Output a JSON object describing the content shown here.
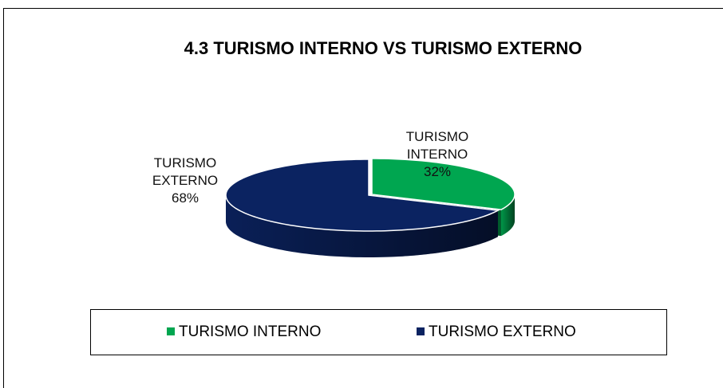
{
  "chart_data": {
    "type": "pie",
    "title": "4.3 TURISMO INTERNO VS TURISMO EXTERNO",
    "categories": [
      "TURISMO INTERNO",
      "TURISMO EXTERNO"
    ],
    "values": [
      32,
      68
    ],
    "value_labels": [
      "32%",
      "68%"
    ],
    "colors": [
      "#00a650",
      "#0b2361"
    ],
    "legend": "bottom"
  }
}
